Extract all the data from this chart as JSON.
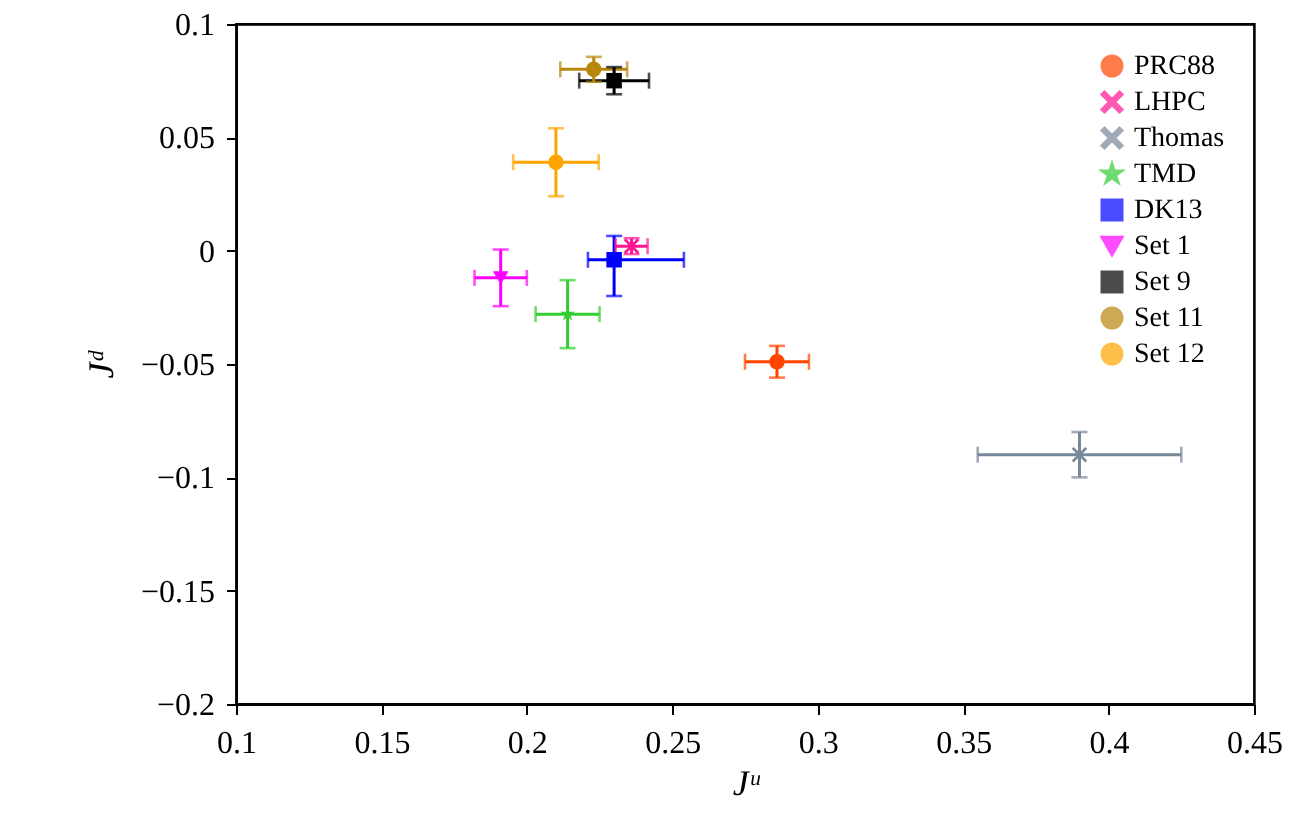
{
  "chart_data": {
    "type": "scatter",
    "xlabel": "Jᵘ",
    "ylabel": "Jᵈ",
    "xlim": [
      0.1,
      0.45
    ],
    "xticks": [
      0.1,
      0.15,
      0.2,
      0.25,
      0.3,
      0.35,
      0.4,
      0.45
    ],
    "ylim": [
      -0.2,
      0.1
    ],
    "yticks": [
      -0.2,
      -0.15,
      -0.1,
      -0.05,
      0,
      0.05,
      0.1
    ],
    "grid": false,
    "legend": "top right",
    "series": [
      {
        "name": "PRC88",
        "color": "#ff4500",
        "marker": "circle",
        "x": [
          0.286
        ],
        "values": [
          -0.049
        ],
        "xerrors": [
          0.011
        ],
        "errors": [
          0.007
        ]
      },
      {
        "name": "LHPC",
        "color": "#ff1493",
        "marker": "cross",
        "x": [
          0.236
        ],
        "values": [
          0.002
        ],
        "xerrors": [
          0.0055
        ],
        "errors": [
          0.0035
        ]
      },
      {
        "name": "Thomas",
        "color": "#778899",
        "marker": "cross",
        "x": [
          0.39
        ],
        "values": [
          -0.09
        ],
        "xerrors": [
          0.035
        ],
        "errors": [
          0.01
        ]
      },
      {
        "name": "TMD",
        "color": "#32cd32",
        "marker": "star",
        "x": [
          0.214
        ],
        "values": [
          -0.028
        ],
        "xerrors": [
          0.011
        ],
        "errors": [
          0.015
        ]
      },
      {
        "name": "DK13",
        "color": "#0000ff",
        "marker": "square",
        "x": [
          0.23
        ],
        "values": [
          -0.004
        ],
        "xerrors": [
          [
            0.221,
            0.254
          ]
        ],
        "errors": [
          [
            -0.02,
            0.0065
          ]
        ]
      },
      {
        "name": "Set 1",
        "color": "#ff00ff",
        "marker": "triangle",
        "x": [
          0.191
        ],
        "values": [
          -0.012
        ],
        "xerrors": [
          0.009
        ],
        "errors": [
          0.0125
        ]
      },
      {
        "name": "Set 9",
        "color": "#000000",
        "marker": "square",
        "x": [
          0.23
        ],
        "values": [
          0.075
        ],
        "xerrors": [
          0.012
        ],
        "errors": [
          0.006
        ]
      },
      {
        "name": "Set 11",
        "color": "#b8860b",
        "marker": "circle",
        "x": [
          0.223
        ],
        "values": [
          0.08
        ],
        "xerrors": [
          0.0115
        ],
        "errors": [
          0.0055
        ]
      },
      {
        "name": "Set 12",
        "color": "#ffa500",
        "marker": "circle",
        "x": [
          0.21
        ],
        "values": [
          0.039
        ],
        "xerrors": [
          0.0147
        ],
        "errors": [
          0.015
        ]
      }
    ]
  }
}
